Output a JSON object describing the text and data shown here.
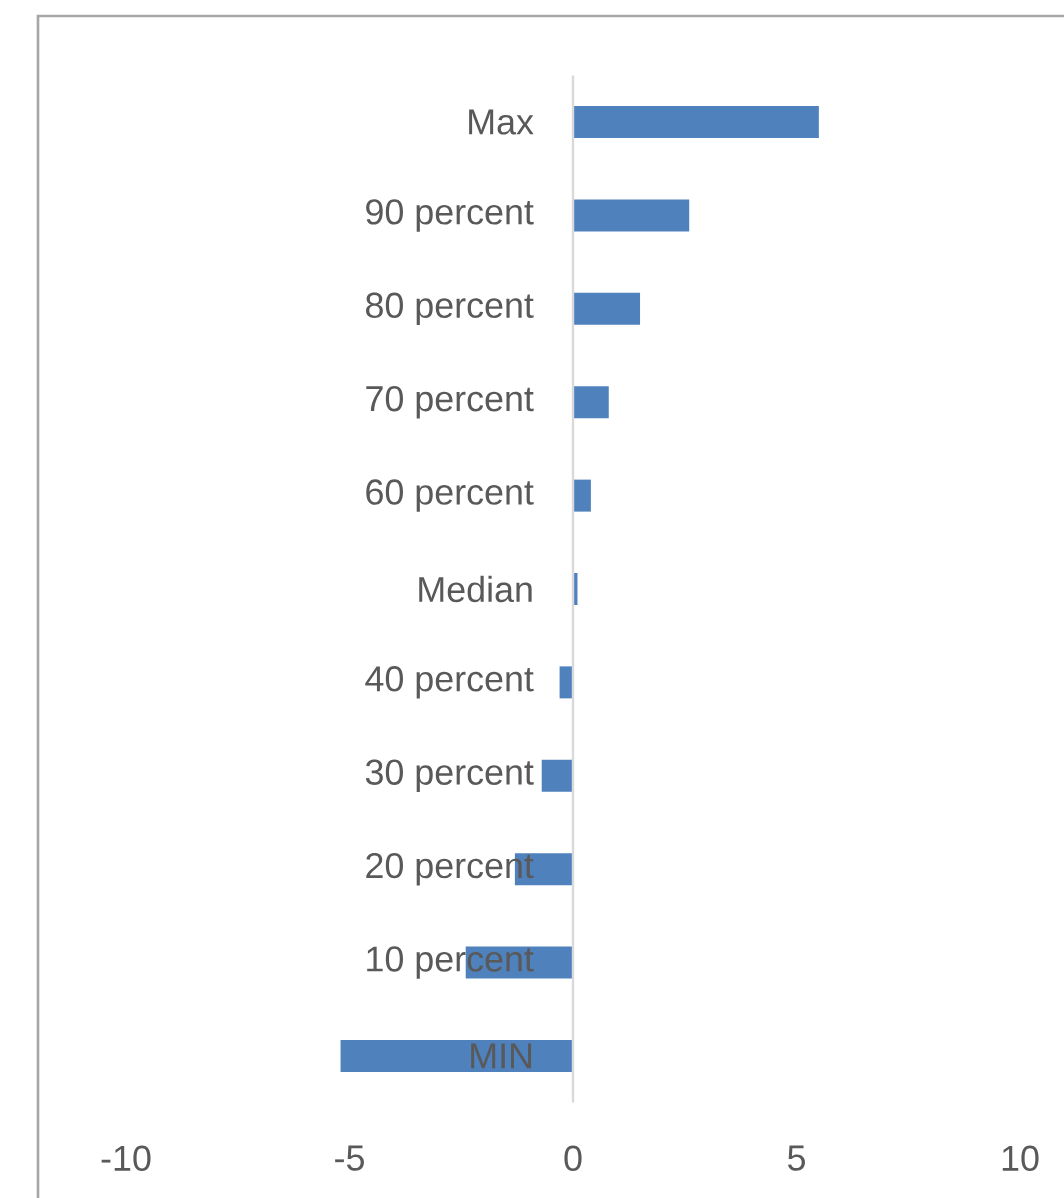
{
  "chart_data": {
    "type": "bar",
    "orientation": "horizontal",
    "categories": [
      "Max",
      "90 percent",
      "80 percent",
      "70 percent",
      "60 percent",
      "Median",
      "40 percent",
      "30 percent",
      "20 percent",
      "10 percent",
      "MIN"
    ],
    "values": [
      5.5,
      2.6,
      1.5,
      0.8,
      0.4,
      0.1,
      -0.3,
      -0.7,
      -1.3,
      -2.4,
      -5.2
    ],
    "color": "#4f81bd",
    "xlim": [
      -10,
      10
    ],
    "xticks": [
      -10,
      -5,
      0,
      5,
      10
    ]
  }
}
